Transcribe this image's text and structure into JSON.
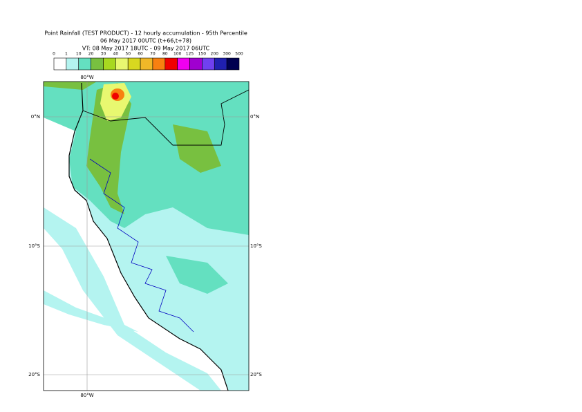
{
  "title": [
    "Point Rainfall (TEST PRODUCT) - 12 hourly accumulation - 95th Percentile",
    "06 May 2017 00UTC (t+66,t+78)",
    "VT: 08 May 2017 18UTC - 09 May 2017 06UTC"
  ],
  "legend": {
    "labels": [
      0,
      1,
      10,
      20,
      30,
      40,
      50,
      60,
      70,
      80,
      100,
      125,
      150,
      200,
      300,
      500
    ],
    "colors": [
      "#ffffff",
      "#b4f4f0",
      "#64e0c0",
      "#78c040",
      "#a8d820",
      "#e8f870",
      "#d8d820",
      "#f0b828",
      "#f88010",
      "#f00000",
      "#f000f0",
      "#a000d0",
      "#7040f0",
      "#2020b0",
      "#000050"
    ]
  },
  "axes": {
    "top": "80°W",
    "bottom": "80°W",
    "left": [
      "0°N",
      "10°S",
      "20°S"
    ],
    "right": [
      "0°N",
      "10°S",
      "20°S"
    ]
  }
}
